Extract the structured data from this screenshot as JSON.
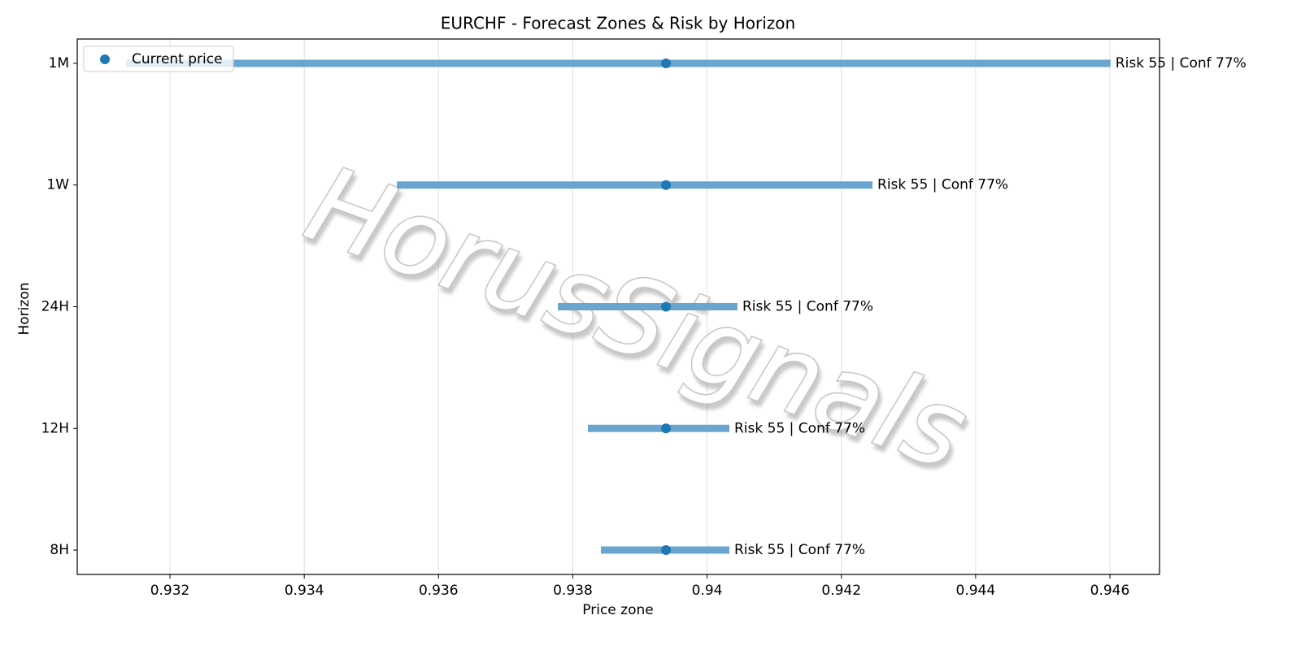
{
  "chart_data": {
    "type": "range",
    "title": "EURCHF - Forecast Zones & Risk by Horizon",
    "xlabel": "Price zone",
    "ylabel": "Horizon",
    "categories": [
      "8H",
      "12H",
      "24H",
      "1W",
      "1M"
    ],
    "low": [
      0.938419,
      0.938225,
      0.937777,
      0.935379,
      0.93135
    ],
    "high": [
      0.940332,
      0.940332,
      0.940453,
      0.942464,
      0.94601
    ],
    "bar_color": "#6aa5cf",
    "series": [
      {
        "name": "Current price",
        "color": "#1f77b4",
        "values": [
          0.939388,
          0.939388,
          0.939388,
          0.939388,
          0.939388
        ]
      }
    ],
    "value_labels": [
      "Risk 55 | Conf 77%",
      "Risk 55 | Conf 77%",
      "Risk 55 | Conf 77%",
      "Risk 55 | Conf 77%",
      "Risk 55 | Conf 77%"
    ],
    "xlim": [
      0.930619,
      0.946739
    ],
    "xticks": [
      0.932,
      0.934,
      0.936,
      0.938,
      0.94,
      0.942,
      0.944,
      0.946
    ],
    "grid": true,
    "legend": "upper left",
    "watermark": "HorusSignals"
  }
}
